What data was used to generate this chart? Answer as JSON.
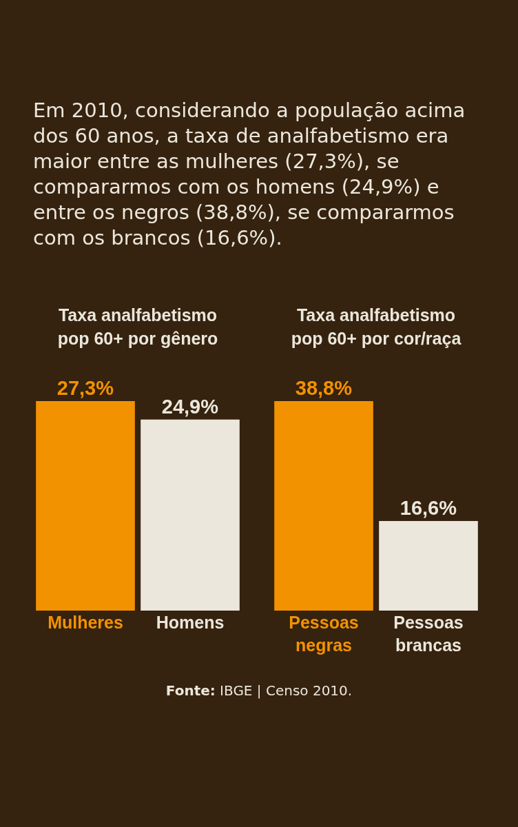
{
  "chart_data": [
    {
      "type": "bar",
      "title": "Taxa analfabetismo pop 60+ por gênero",
      "subtitle": "Em 2010, considerando a população acima dos 60 anos, a taxa de analfabetismo era maior entre as mulheres (27,3%), se compararmos com os homens (24,9%) e entre os negros (38,8%), se compararmos com os brancos (16,6%).",
      "categories": [
        "Mulheres",
        "Homens"
      ],
      "values": [
        27.3,
        24.9
      ],
      "value_labels": [
        "27,3%",
        "24,9%"
      ],
      "colors": [
        "#f39200",
        "#ebe7dc"
      ]
    },
    {
      "type": "bar",
      "title": "Taxa analfabetismo pop 60+ por cor/raça",
      "categories": [
        "Pessoas negras",
        "Pessoas brancas"
      ],
      "values": [
        38.8,
        16.6
      ],
      "value_labels": [
        "38,8%",
        "16,6%"
      ],
      "colors": [
        "#f39200",
        "#ebe7dc"
      ],
      "annotations": [
        "Fonte: IBGE | Censo 2010."
      ]
    }
  ]
}
